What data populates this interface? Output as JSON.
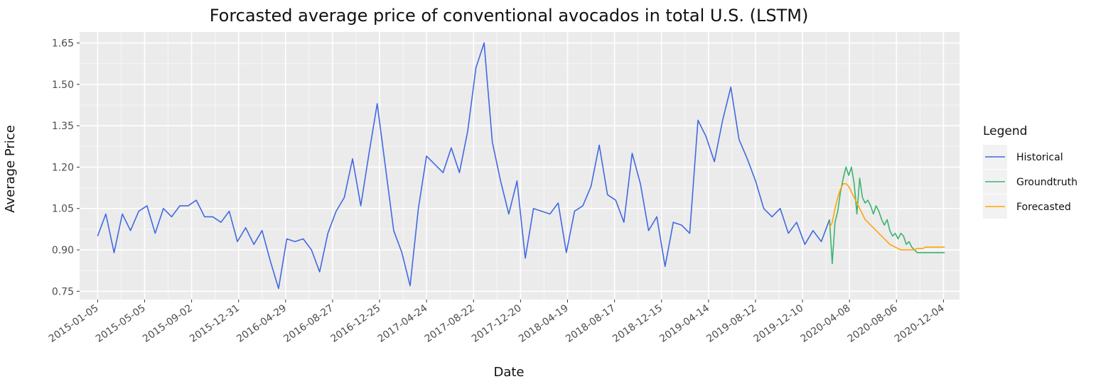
{
  "chart_data": {
    "type": "line",
    "title": "Forcasted average price of conventional avocados in total U.S. (LSTM)",
    "xlabel": "Date",
    "ylabel": "Average Price",
    "x_range": [
      "2014-11-20",
      "2021-01-14"
    ],
    "ylim": [
      0.72,
      1.69
    ],
    "y_ticks": [
      0.75,
      0.9,
      1.05,
      1.2,
      1.35,
      1.5,
      1.65
    ],
    "y_tick_labels": [
      "0.75",
      "0.90",
      "1.05",
      "1.20",
      "1.35",
      "1.50",
      "1.65"
    ],
    "x_ticks": [
      "2015-01-05",
      "2015-05-05",
      "2015-09-02",
      "2015-12-31",
      "2016-04-29",
      "2016-08-27",
      "2016-12-25",
      "2017-04-24",
      "2017-08-22",
      "2017-12-20",
      "2018-04-19",
      "2018-08-17",
      "2018-12-15",
      "2019-04-14",
      "2019-08-12",
      "2019-12-10",
      "2020-04-08",
      "2020-08-06",
      "2020-12-04"
    ],
    "grid": true,
    "legend": {
      "title": "Legend",
      "position": "right"
    },
    "series": [
      {
        "name": "Historical",
        "color": "#4169e1",
        "x": [
          "2015-01-05",
          "2015-01-26",
          "2015-02-16",
          "2015-03-09",
          "2015-03-30",
          "2015-04-20",
          "2015-05-11",
          "2015-06-01",
          "2015-06-22",
          "2015-07-13",
          "2015-08-03",
          "2015-08-24",
          "2015-09-14",
          "2015-10-05",
          "2015-10-26",
          "2015-11-16",
          "2015-12-07",
          "2015-12-28",
          "2016-01-18",
          "2016-02-08",
          "2016-02-29",
          "2016-03-21",
          "2016-04-11",
          "2016-05-02",
          "2016-05-23",
          "2016-06-13",
          "2016-07-04",
          "2016-07-25",
          "2016-08-15",
          "2016-09-05",
          "2016-09-26",
          "2016-10-17",
          "2016-11-07",
          "2016-11-28",
          "2016-12-19",
          "2017-01-09",
          "2017-01-30",
          "2017-02-20",
          "2017-03-13",
          "2017-04-03",
          "2017-04-24",
          "2017-05-15",
          "2017-06-05",
          "2017-06-26",
          "2017-07-17",
          "2017-08-07",
          "2017-08-28",
          "2017-09-18",
          "2017-10-09",
          "2017-10-30",
          "2017-11-20",
          "2017-12-11",
          "2018-01-01",
          "2018-01-22",
          "2018-02-12",
          "2018-03-05",
          "2018-03-26",
          "2018-04-16",
          "2018-05-07",
          "2018-05-28",
          "2018-06-18",
          "2018-07-09",
          "2018-07-30",
          "2018-08-20",
          "2018-09-10",
          "2018-10-01",
          "2018-10-22",
          "2018-11-12",
          "2018-12-03",
          "2018-12-24",
          "2019-01-14",
          "2019-02-04",
          "2019-02-25",
          "2019-03-18",
          "2019-04-08",
          "2019-04-29",
          "2019-05-20",
          "2019-06-10",
          "2019-07-01",
          "2019-07-22",
          "2019-08-12",
          "2019-09-02",
          "2019-09-23",
          "2019-10-14",
          "2019-11-04",
          "2019-11-25",
          "2019-12-16",
          "2020-01-06",
          "2020-01-27",
          "2020-02-17"
        ],
        "values": [
          0.95,
          1.03,
          0.89,
          1.03,
          0.97,
          1.04,
          1.06,
          0.96,
          1.05,
          1.02,
          1.06,
          1.06,
          1.08,
          1.02,
          1.02,
          1.0,
          1.04,
          0.93,
          0.98,
          0.92,
          0.97,
          0.86,
          0.76,
          0.94,
          0.93,
          0.94,
          0.9,
          0.82,
          0.96,
          1.04,
          1.09,
          1.23,
          1.06,
          1.25,
          1.43,
          1.2,
          0.97,
          0.89,
          0.77,
          1.05,
          1.24,
          1.21,
          1.18,
          1.27,
          1.18,
          1.33,
          1.56,
          1.65,
          1.29,
          1.15,
          1.03,
          1.15,
          0.87,
          1.05,
          1.04,
          1.03,
          1.07,
          0.89,
          1.04,
          1.06,
          1.13,
          1.28,
          1.1,
          1.08,
          1.0,
          1.25,
          1.14,
          0.97,
          1.02,
          0.84,
          1.0,
          0.99,
          0.96,
          1.37,
          1.31,
          1.22,
          1.37,
          1.49,
          1.3,
          1.23,
          1.15,
          1.05,
          1.02,
          1.05,
          0.96,
          1.0,
          0.92,
          0.97,
          0.93,
          1.01
        ]
      },
      {
        "name": "Groundtruth",
        "color": "#3cb371",
        "x": [
          "2020-02-17",
          "2020-02-24",
          "2020-03-02",
          "2020-03-09",
          "2020-03-16",
          "2020-03-23",
          "2020-03-30",
          "2020-04-06",
          "2020-04-13",
          "2020-04-20",
          "2020-04-27",
          "2020-05-04",
          "2020-05-11",
          "2020-05-18",
          "2020-05-25",
          "2020-06-01",
          "2020-06-08",
          "2020-06-15",
          "2020-06-22",
          "2020-06-29",
          "2020-07-06",
          "2020-07-13",
          "2020-07-20",
          "2020-07-27",
          "2020-08-03",
          "2020-08-10",
          "2020-08-17",
          "2020-08-24",
          "2020-08-31",
          "2020-09-07",
          "2020-09-14",
          "2020-09-21",
          "2020-09-28",
          "2020-10-05",
          "2020-10-12",
          "2020-10-19",
          "2020-10-26",
          "2020-11-02",
          "2020-11-09",
          "2020-11-16",
          "2020-11-23",
          "2020-11-30",
          "2020-12-07"
        ],
        "values": [
          1.01,
          0.85,
          1.0,
          1.04,
          1.11,
          1.16,
          1.2,
          1.17,
          1.2,
          1.14,
          1.03,
          1.16,
          1.09,
          1.07,
          1.08,
          1.06,
          1.03,
          1.06,
          1.04,
          1.01,
          0.99,
          1.01,
          0.97,
          0.95,
          0.96,
          0.94,
          0.96,
          0.95,
          0.92,
          0.93,
          0.91,
          0.9,
          0.89,
          0.89,
          0.89,
          0.89,
          0.89,
          0.89,
          0.89,
          0.89,
          0.89,
          0.89,
          0.89
        ]
      },
      {
        "name": "Forecasted",
        "color": "#ffa500",
        "x": [
          "2020-02-17",
          "2020-02-24",
          "2020-03-02",
          "2020-03-09",
          "2020-03-16",
          "2020-03-23",
          "2020-03-30",
          "2020-04-06",
          "2020-04-13",
          "2020-04-20",
          "2020-04-27",
          "2020-05-04",
          "2020-05-11",
          "2020-05-18",
          "2020-05-25",
          "2020-06-01",
          "2020-06-08",
          "2020-06-15",
          "2020-06-22",
          "2020-06-29",
          "2020-07-06",
          "2020-07-13",
          "2020-07-20",
          "2020-07-27",
          "2020-08-03",
          "2020-08-10",
          "2020-08-17",
          "2020-08-24",
          "2020-08-31",
          "2020-09-07",
          "2020-09-14",
          "2020-09-21",
          "2020-09-28",
          "2020-10-05",
          "2020-10-12",
          "2020-10-19",
          "2020-10-26",
          "2020-11-02",
          "2020-11-09",
          "2020-11-16",
          "2020-11-23",
          "2020-11-30",
          "2020-12-07"
        ],
        "values": [
          0.98,
          1.0,
          1.05,
          1.09,
          1.12,
          1.14,
          1.14,
          1.13,
          1.11,
          1.09,
          1.07,
          1.05,
          1.03,
          1.01,
          1.0,
          0.99,
          0.98,
          0.97,
          0.96,
          0.95,
          0.94,
          0.93,
          0.92,
          0.915,
          0.91,
          0.905,
          0.9,
          0.9,
          0.9,
          0.9,
          0.9,
          0.9,
          0.905,
          0.905,
          0.905,
          0.91,
          0.91,
          0.91,
          0.91,
          0.91,
          0.91,
          0.91,
          0.91
        ]
      }
    ]
  }
}
